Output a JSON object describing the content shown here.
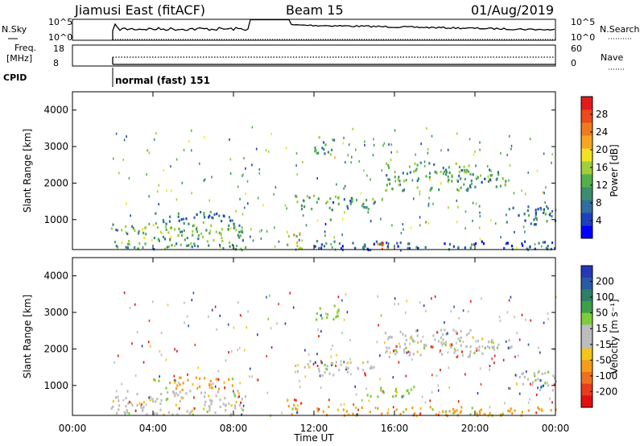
{
  "header": {
    "station": "Jiamusi East (fitACF)",
    "beam": "Beam 15",
    "date": "01/Aug/2019"
  },
  "top_panels": {
    "nsky_label": "N.Sky",
    "nsearch_label": "N.Search",
    "freq_label_line1": "Freq.",
    "freq_label_line2": "[MHz]",
    "nave_label": "Nave",
    "cpid_label": "CPID",
    "noise_left_ticks": [
      "10^5",
      "10^0"
    ],
    "noise_right_ticks": [
      "10^5",
      "10^0"
    ],
    "freq_ticks": [
      "18",
      "8"
    ],
    "nave_ticks": [
      "60",
      "0"
    ],
    "cpid_text": "normal (fast) 151"
  },
  "chart_data": [
    {
      "type": "heatmap",
      "panel": "power",
      "ylabel": "Slant Range [km]",
      "yticks": [
        "1000",
        "2000",
        "3000",
        "4000"
      ],
      "ylim": [
        180,
        4500
      ],
      "xlim_hours": [
        0,
        24
      ],
      "colorbar": {
        "label": "Power [dB]",
        "ticks": [
          "4",
          "8",
          "12",
          "16",
          "20",
          "24",
          "28"
        ],
        "range": [
          0,
          30
        ],
        "colors": [
          "#0000ff",
          "#1f3fbf",
          "#2f6e9e",
          "#3c8f6e",
          "#55b04a",
          "#9fcf3a",
          "#f2e321",
          "#f5a623",
          "#f07b1f",
          "#ee4a1c",
          "#e41a1c"
        ]
      },
      "echo_regions": [
        {
          "t0": 1.9,
          "t1": 8.6,
          "r0": 220,
          "r1": 900,
          "db": 12
        },
        {
          "t0": 4.0,
          "t1": 8.0,
          "r0": 900,
          "r1": 1250,
          "db": 8
        },
        {
          "t0": 10.6,
          "t1": 11.4,
          "r0": 200,
          "r1": 700,
          "db": 18
        },
        {
          "t0": 11.0,
          "t1": 15.0,
          "r0": 1300,
          "r1": 1700,
          "db": 10
        },
        {
          "t0": 12.0,
          "t1": 13.2,
          "r0": 2800,
          "r1": 3300,
          "db": 10
        },
        {
          "t0": 15.5,
          "t1": 19.8,
          "r0": 1800,
          "r1": 2600,
          "db": 12
        },
        {
          "t0": 19.5,
          "t1": 21.8,
          "r0": 1900,
          "r1": 2400,
          "db": 10
        },
        {
          "t0": 21.5,
          "t1": 24.0,
          "r0": 900,
          "r1": 1400,
          "db": 8
        },
        {
          "t0": 12.0,
          "t1": 24.0,
          "r0": 200,
          "r1": 450,
          "db": 6
        },
        {
          "t0": 14.5,
          "t1": 15.5,
          "r0": 200,
          "r1": 400,
          "db": 24
        }
      ]
    },
    {
      "type": "heatmap",
      "panel": "velocity",
      "ylabel": "Slant Range [km]",
      "yticks": [
        "1000",
        "2000",
        "3000",
        "4000"
      ],
      "ylim": [
        180,
        4500
      ],
      "xlim_hours": [
        0,
        24
      ],
      "xticks": [
        "00:00",
        "04:00",
        "08:00",
        "12:00",
        "16:00",
        "20:00",
        "00:00"
      ],
      "xlabel": "Time UT",
      "colorbar": {
        "label": "Velocity [m s⁻¹]",
        "ticks": [
          "200",
          "100",
          "50",
          "15",
          "-15",
          "-50",
          "-100",
          "-200"
        ],
        "colors": [
          "#2438b8",
          "#2a5aa6",
          "#2f7f66",
          "#3ca048",
          "#7dcf3a",
          "#bdbdbd",
          "#bdbdbd",
          "#f5c518",
          "#f59c1a",
          "#f07020",
          "#e83c1c",
          "#e01010"
        ]
      },
      "echo_regions": [
        {
          "t0": 1.9,
          "t1": 8.6,
          "r0": 220,
          "r1": 900,
          "v": "grey"
        },
        {
          "t0": 4.0,
          "t1": 8.0,
          "r0": 900,
          "r1": 1250,
          "v": "orange"
        },
        {
          "t0": 10.6,
          "t1": 11.4,
          "r0": 200,
          "r1": 700,
          "v": "orange"
        },
        {
          "t0": 11.0,
          "t1": 15.0,
          "r0": 1300,
          "r1": 1700,
          "v": "grey"
        },
        {
          "t0": 12.0,
          "t1": 13.2,
          "r0": 2800,
          "r1": 3300,
          "v": "green"
        },
        {
          "t0": 15.5,
          "t1": 19.8,
          "r0": 1800,
          "r1": 2600,
          "v": "grey"
        },
        {
          "t0": 19.5,
          "t1": 21.8,
          "r0": 1900,
          "r1": 2400,
          "v": "grey"
        },
        {
          "t0": 21.5,
          "t1": 24.0,
          "r0": 900,
          "r1": 1400,
          "v": "grey"
        },
        {
          "t0": 12.0,
          "t1": 24.0,
          "r0": 200,
          "r1": 450,
          "v": "orange"
        },
        {
          "t0": 14.5,
          "t1": 17.0,
          "r0": 700,
          "r1": 1000,
          "v": "green"
        }
      ]
    }
  ]
}
